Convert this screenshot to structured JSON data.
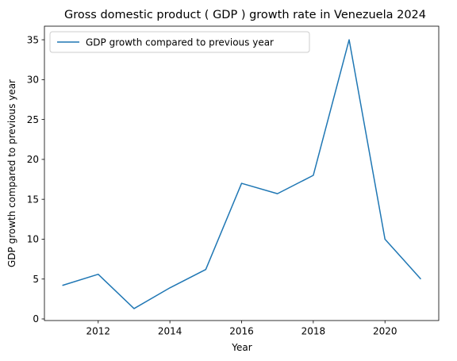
{
  "chart_data": {
    "type": "line",
    "title": "Gross domestic product ( GDP ) growth rate in Venezuela 2024",
    "xlabel": "Year",
    "ylabel": "GDP growth compared to previous year",
    "x": [
      2011,
      2012,
      2013,
      2014,
      2015,
      2016,
      2017,
      2018,
      2019,
      2020,
      2021
    ],
    "series": [
      {
        "name": "GDP growth compared to previous year",
        "color": "#1f77b4",
        "values": [
          4.2,
          5.6,
          1.3,
          3.9,
          6.2,
          17.0,
          15.7,
          18.0,
          35.0,
          10.0,
          5.0
        ]
      }
    ],
    "xticks": [
      2012,
      2014,
      2016,
      2018,
      2020
    ],
    "yticks": [
      0,
      5,
      10,
      15,
      20,
      25,
      30,
      35
    ],
    "xlim": [
      2010.5,
      2021.5
    ],
    "ylim": [
      -0.2,
      36.7
    ],
    "grid": false,
    "legend_position": "upper left"
  }
}
